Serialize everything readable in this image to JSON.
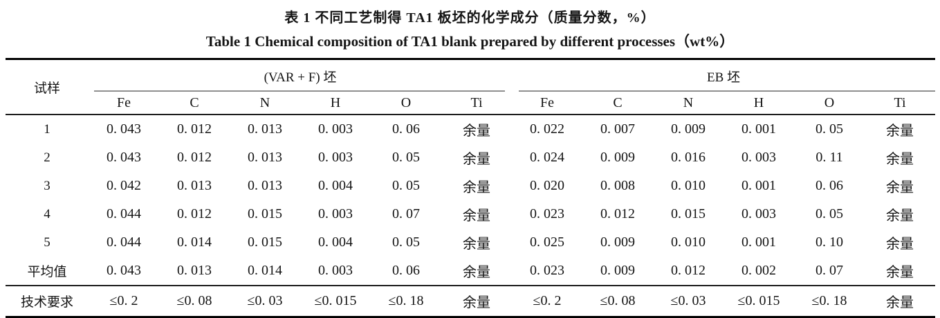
{
  "captions": {
    "zh": "表 1 不同工艺制得 TA1 板坯的化学成分（质量分数，%）",
    "en": "Table 1 Chemical composition of TA1 blank prepared by different processes（wt%）"
  },
  "table": {
    "row_header_label": "试样",
    "groups": [
      {
        "label": "(VAR + F) 坯",
        "columns": [
          "Fe",
          "C",
          "N",
          "H",
          "O",
          "Ti"
        ]
      },
      {
        "label": "EB 坯",
        "columns": [
          "Fe",
          "C",
          "N",
          "H",
          "O",
          "Ti"
        ]
      }
    ],
    "rows": [
      {
        "label": "1",
        "cells": [
          "0. 043",
          "0. 012",
          "0. 013",
          "0. 003",
          "0. 06",
          "余量",
          "0. 022",
          "0. 007",
          "0. 009",
          "0. 001",
          "0. 05",
          "余量"
        ]
      },
      {
        "label": "2",
        "cells": [
          "0. 043",
          "0. 012",
          "0. 013",
          "0. 003",
          "0. 05",
          "余量",
          "0. 024",
          "0. 009",
          "0. 016",
          "0. 003",
          "0. 11",
          "余量"
        ]
      },
      {
        "label": "3",
        "cells": [
          "0. 042",
          "0. 013",
          "0. 013",
          "0. 004",
          "0. 05",
          "余量",
          "0. 020",
          "0. 008",
          "0. 010",
          "0. 001",
          "0. 06",
          "余量"
        ]
      },
      {
        "label": "4",
        "cells": [
          "0. 044",
          "0. 012",
          "0. 015",
          "0. 003",
          "0. 07",
          "余量",
          "0. 023",
          "0. 012",
          "0. 015",
          "0. 003",
          "0. 05",
          "余量"
        ]
      },
      {
        "label": "5",
        "cells": [
          "0. 044",
          "0. 014",
          "0. 015",
          "0. 004",
          "0. 05",
          "余量",
          "0. 025",
          "0. 009",
          "0. 010",
          "0. 001",
          "0. 10",
          "余量"
        ]
      },
      {
        "label": "平均值",
        "cells": [
          "0. 043",
          "0. 013",
          "0. 014",
          "0. 003",
          "0. 06",
          "余量",
          "0. 023",
          "0. 009",
          "0. 012",
          "0. 002",
          "0. 07",
          "余量"
        ]
      },
      {
        "label": "技术要求",
        "cells": [
          "≤0. 2",
          "≤0. 08",
          "≤0. 03",
          "≤0. 015",
          "≤0. 18",
          "余量",
          "≤0. 2",
          "≤0. 08",
          "≤0. 03",
          "≤0. 015",
          "≤0. 18",
          "余量"
        ]
      }
    ]
  }
}
